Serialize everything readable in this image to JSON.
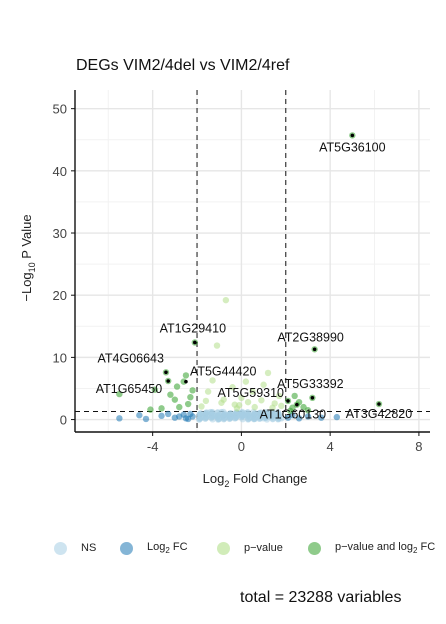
{
  "chart_data": {
    "type": "scatter",
    "title": "DEGs VIM2/4del vs VIM2/4ref",
    "xlabel": "Log2 Fold Change",
    "ylabel": "-Log10 P Value",
    "xlim": [
      -7.5,
      8.5
    ],
    "ylim": [
      -2,
      53
    ],
    "x_ticks": [
      -4,
      0,
      4,
      8
    ],
    "y_ticks": [
      0,
      10,
      20,
      30,
      40,
      50
    ],
    "grid": true,
    "fc_cutoff": [
      -2,
      2
    ],
    "p_cutoff": 1.3,
    "legend_position": "bottom",
    "series": [
      {
        "name": "NS",
        "color": "#a6cee3",
        "points": [
          [
            -1.6,
            0.9
          ],
          [
            -1.2,
            0.6
          ],
          [
            -0.9,
            1.2
          ],
          [
            -0.5,
            0.4
          ],
          [
            -0.2,
            1.1
          ],
          [
            0.1,
            0.7
          ],
          [
            0.4,
            0.3
          ],
          [
            0.8,
            1.0
          ],
          [
            1.2,
            0.5
          ],
          [
            1.5,
            0.9
          ],
          [
            1.8,
            0.2
          ],
          [
            -1.8,
            0.3
          ],
          [
            -1.0,
            0.1
          ],
          [
            -0.3,
            0.2
          ],
          [
            0.6,
            0.1
          ],
          [
            1.0,
            0.2
          ],
          [
            -1.4,
            1.2
          ],
          [
            0.2,
            1.0
          ],
          [
            1.6,
            0.6
          ],
          [
            -0.6,
            0.8
          ]
        ]
      },
      {
        "name": "Log2 FC",
        "color": "#1f78b4",
        "points": [
          [
            -5.5,
            0.2
          ],
          [
            -4.6,
            0.7
          ],
          [
            -3.6,
            0.6
          ],
          [
            -3.3,
            0.9
          ],
          [
            -3.0,
            0.3
          ],
          [
            -2.8,
            0.5
          ],
          [
            -2.5,
            0.2
          ],
          [
            -2.3,
            0.9
          ],
          [
            -2.2,
            0.5
          ],
          [
            2.1,
            0.3
          ],
          [
            2.3,
            0.7
          ],
          [
            2.6,
            0.2
          ],
          [
            3.0,
            0.5
          ],
          [
            3.6,
            0.3
          ],
          [
            4.3,
            0.4
          ],
          [
            -4.3,
            0.1
          ],
          [
            -2.6,
            0.8
          ],
          [
            -2.4,
            0.1
          ]
        ]
      },
      {
        "name": "p-value",
        "color": "#b2df8a",
        "points": [
          [
            -0.7,
            19.2
          ],
          [
            -1.1,
            11.9
          ],
          [
            -1.5,
            4.5
          ],
          [
            -0.8,
            3.2
          ],
          [
            -0.3,
            2.4
          ],
          [
            0.3,
            2.8
          ],
          [
            0.9,
            3.1
          ],
          [
            1.2,
            7.5
          ],
          [
            -0.2,
            1.8
          ],
          [
            0.6,
            2.0
          ],
          [
            1.5,
            2.6
          ],
          [
            -1.8,
            2.1
          ],
          [
            -1.3,
            6.3
          ],
          [
            -0.4,
            5.2
          ],
          [
            0.5,
            4.5
          ],
          [
            1.4,
            1.9
          ],
          [
            1.7,
            3.8
          ],
          [
            -0.9,
            2.7
          ],
          [
            0.0,
            3.5
          ],
          [
            1.0,
            5.6
          ],
          [
            -1.6,
            3.0
          ],
          [
            0.2,
            6.1
          ],
          [
            1.8,
            2.2
          ],
          [
            -0.1,
            2.3
          ]
        ]
      },
      {
        "name": "p-value and log2 FC",
        "color": "#33a02c",
        "points": [
          [
            5.0,
            45.7
          ],
          [
            -2.1,
            12.4
          ],
          [
            3.3,
            11.3
          ],
          [
            -3.4,
            7.6
          ],
          [
            -3.3,
            6.2
          ],
          [
            -2.5,
            7.1
          ],
          [
            -2.6,
            6.1
          ],
          [
            -2.2,
            4.7
          ],
          [
            2.1,
            3.0
          ],
          [
            2.5,
            2.4
          ],
          [
            3.2,
            3.5
          ],
          [
            2.8,
            2.0
          ],
          [
            2.3,
            1.9
          ],
          [
            6.2,
            2.5
          ],
          [
            -5.5,
            4.1
          ],
          [
            -3.9,
            4.8
          ],
          [
            -3.0,
            3.2
          ],
          [
            -2.8,
            2.0
          ],
          [
            -2.4,
            2.5
          ],
          [
            -3.6,
            1.8
          ],
          [
            -3.2,
            4.0
          ],
          [
            -2.9,
            5.3
          ],
          [
            -2.3,
            3.6
          ],
          [
            2.6,
            2.8
          ],
          [
            3.0,
            1.5
          ],
          [
            2.2,
            1.4
          ],
          [
            -4.1,
            1.6
          ],
          [
            2.4,
            3.8
          ]
        ]
      }
    ],
    "labels": [
      {
        "text": "AT5G36100",
        "x": 5.0,
        "y": 45.7
      },
      {
        "text": "AT1G29410",
        "x": -2.1,
        "y": 12.4
      },
      {
        "text": "AT2G38990",
        "x": 3.3,
        "y": 11.3
      },
      {
        "text": "AT4G06643",
        "x": -3.4,
        "y": 7.6
      },
      {
        "text": "AT5G44420",
        "x": -2.5,
        "y": 6.1
      },
      {
        "text": "AT1G65450",
        "x": -3.3,
        "y": 6.2
      },
      {
        "text": "AT5G33392",
        "x": 3.2,
        "y": 3.5
      },
      {
        "text": "AT5G59310",
        "x": 2.1,
        "y": 3.0
      },
      {
        "text": "AT1G60130",
        "x": 2.5,
        "y": 2.4
      },
      {
        "text": "AT3G42820",
        "x": 6.2,
        "y": 2.5
      }
    ]
  },
  "legend": {
    "items": [
      {
        "label": "NS",
        "sub": "",
        "rest": "",
        "color": "#a6cee3"
      },
      {
        "label": "Log",
        "sub": "2",
        "rest": " FC",
        "color": "#1f78b4"
      },
      {
        "label": "p−value",
        "sub": "",
        "rest": "",
        "color": "#b2df8a"
      },
      {
        "label": "p−value and log",
        "sub": "2",
        "rest": " FC",
        "color": "#33a02c"
      }
    ]
  },
  "caption": "total = 23288 variables"
}
